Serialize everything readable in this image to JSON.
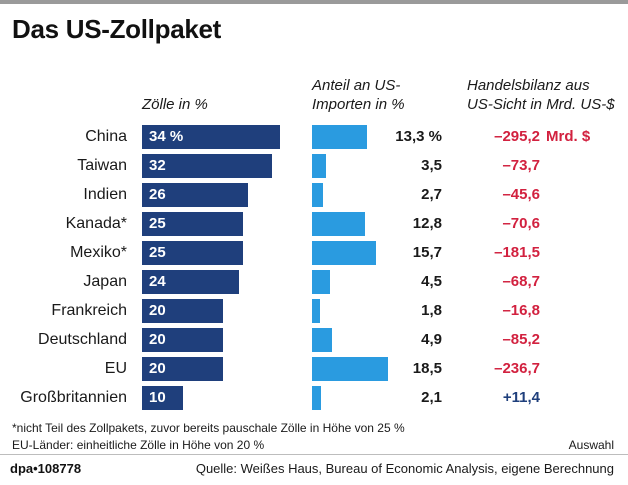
{
  "title": "Das US-Zollpaket",
  "headers": {
    "tariffs": "Zölle in %",
    "share": "Anteil an US-\nImporten in %",
    "balance": "Handelsbilanz aus\nUS-Sicht in Mrd. US-$"
  },
  "colors": {
    "tariff_bar": "#1f3f7c",
    "share_bar": "#2a9be0",
    "negative": "#d2213f",
    "positive": "#1f3f7c"
  },
  "chart_data": {
    "type": "bar",
    "categories": [
      "China",
      "Taiwan",
      "Indien",
      "Kanada*",
      "Mexiko*",
      "Japan",
      "Frankreich",
      "Deutschland",
      "EU",
      "Großbritannien"
    ],
    "series": [
      {
        "name": "Zölle in %",
        "values": [
          34,
          32,
          26,
          25,
          25,
          24,
          20,
          20,
          20,
          10
        ],
        "labels": [
          "34 %",
          "32",
          "26",
          "25",
          "25",
          "24",
          "20",
          "20",
          "20",
          "10"
        ]
      },
      {
        "name": "Anteil an US-Importen in %",
        "values": [
          13.3,
          3.5,
          2.7,
          12.8,
          15.7,
          4.5,
          1.8,
          4.9,
          18.5,
          2.1
        ],
        "labels": [
          "13,3 %",
          "3,5",
          "2,7",
          "12,8",
          "15,7",
          "4,5",
          "1,8",
          "4,9",
          "18,5",
          "2,1"
        ]
      },
      {
        "name": "Handelsbilanz aus US-Sicht in Mrd. US-$",
        "values": [
          -295.2,
          -73.7,
          -45.6,
          -70.6,
          -181.5,
          -68.7,
          -16.8,
          -85.2,
          -236.7,
          11.4
        ],
        "labels": [
          "–295,2",
          "–73,7",
          "–45,6",
          "–70,6",
          "–181,5",
          "–68,7",
          "–16,8",
          "–85,2",
          "–236,7",
          "+11,4"
        ]
      }
    ],
    "balance_unit": "Mrd. $"
  },
  "footnotes": {
    "note1": "*nicht Teil des Zollpakets, zuvor bereits pauschale Zölle in Höhe von 25 %",
    "note2": "EU-Länder: einheitliche Zölle in Höhe von 20 %",
    "selection": "Auswahl"
  },
  "credit": "dpa•108778",
  "source": "Quelle: Weißes Haus, Bureau of Economic Analysis, eigene Berechnung"
}
